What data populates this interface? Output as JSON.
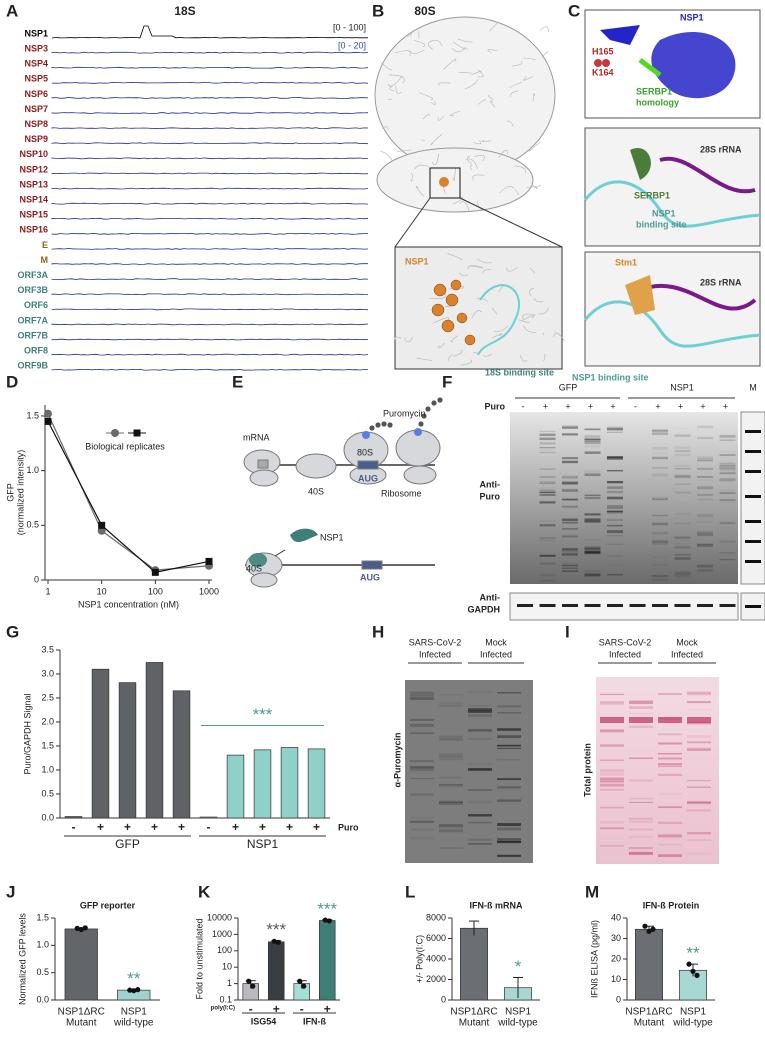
{
  "letters": [
    "A",
    "B",
    "C",
    "D",
    "E",
    "F",
    "G",
    "H",
    "I",
    "J",
    "K",
    "L",
    "M"
  ],
  "panel_a": {
    "title": "18S",
    "ranges": [
      "[0 - 100]",
      "[0 - 20]"
    ],
    "tracks": [
      {
        "name": "NSP1",
        "color": "#000000"
      },
      {
        "name": "NSP3",
        "color": "#8b1a1a"
      },
      {
        "name": "NSP4",
        "color": "#8b1a1a"
      },
      {
        "name": "NSP5",
        "color": "#8b1a1a"
      },
      {
        "name": "NSP6",
        "color": "#8b1a1a"
      },
      {
        "name": "NSP7",
        "color": "#8b1a1a"
      },
      {
        "name": "NSP8",
        "color": "#8b1a1a"
      },
      {
        "name": "NSP9",
        "color": "#8b1a1a"
      },
      {
        "name": "NSP10",
        "color": "#8b1a1a"
      },
      {
        "name": "NSP12",
        "color": "#8b1a1a"
      },
      {
        "name": "NSP13",
        "color": "#8b1a1a"
      },
      {
        "name": "NSP14",
        "color": "#8b1a1a"
      },
      {
        "name": "NSP15",
        "color": "#8b1a1a"
      },
      {
        "name": "NSP16",
        "color": "#8b1a1a"
      },
      {
        "name": "E",
        "color": "#8b6914"
      },
      {
        "name": "M",
        "color": "#8b6914"
      },
      {
        "name": "ORF3A",
        "color": "#3f7f7a"
      },
      {
        "name": "ORF3B",
        "color": "#3f7f7a"
      },
      {
        "name": "ORF6",
        "color": "#3f7f7a"
      },
      {
        "name": "ORF7A",
        "color": "#3f7f7a"
      },
      {
        "name": "ORF7B",
        "color": "#3f7f7a"
      },
      {
        "name": "ORF8",
        "color": "#3f7f7a"
      },
      {
        "name": "ORF9B",
        "color": "#3f7f7a"
      }
    ]
  },
  "panel_b": {
    "title": "80S",
    "inset_label": "NSP1",
    "caption": "18S binding site"
  },
  "panel_c": {
    "top": [
      "NSP1",
      "H165",
      "K164",
      "SERBP1",
      "homology"
    ],
    "middle": [
      "28S rRNA",
      "SERBP1",
      "NSP1",
      "binding site"
    ],
    "bottom": [
      "Stm1",
      "28S rRNA",
      "NSP1 binding site"
    ]
  },
  "panel_e": {
    "labels": [
      "mRNA",
      "40S",
      "80S",
      "AUG",
      "Ribosome",
      "Puromycin",
      "NSP1",
      "40S",
      "AUG"
    ]
  },
  "panel_f": {
    "groups": [
      "GFP",
      "NSP1"
    ],
    "marker": "M",
    "row_label": "Puro",
    "lanes": [
      "-",
      "+",
      "+",
      "+",
      "+",
      "-",
      "+",
      "+",
      "+",
      "+"
    ],
    "blot1": [
      "Anti-",
      "Puro"
    ],
    "blot2": [
      "Anti-",
      "GAPDH"
    ]
  },
  "panel_h": {
    "groups": [
      [
        "SARS-CoV-2",
        "Infected"
      ],
      [
        "Mock",
        "Infected"
      ]
    ],
    "side": "α-Puromycin"
  },
  "panel_i": {
    "groups": [
      [
        "SARS-CoV-2",
        "Infected"
      ],
      [
        "Mock",
        "Infected"
      ]
    ],
    "side": "Total protein"
  },
  "chart_data": [
    {
      "type": "line",
      "xlog": true,
      "x": [
        1,
        10,
        100,
        1000
      ],
      "xlim": [
        1,
        1000
      ],
      "xticks": [
        1,
        10,
        100,
        1000
      ],
      "ylim": [
        0,
        1.6
      ],
      "yticks": [
        0,
        0.5,
        {
          "value": 1.0,
          "label": "1.0"
        },
        1.5
      ],
      "ylabel": [
        "GFP",
        "(normalized intensity)"
      ],
      "xlabel": "NSP1 concentration (nM)",
      "legend_label": "Biological replicates",
      "series": [
        {
          "marker": "circle",
          "color": "#6b6b6b",
          "values": [
            1.52,
            0.45,
            0.09,
            0.13
          ]
        },
        {
          "marker": "square",
          "color": "#111111",
          "values": [
            1.45,
            0.5,
            0.07,
            0.17
          ]
        }
      ]
    },
    {
      "type": "bar",
      "ylim": [
        0,
        3.5
      ],
      "yticks": [
        {
          "value": 0,
          "label": "0.0"
        },
        0.5,
        {
          "value": 1,
          "label": "1.0"
        },
        1.5,
        {
          "value": 2,
          "label": "2.0"
        },
        2.5,
        {
          "value": 3,
          "label": "3.0"
        },
        3.5
      ],
      "ylabel": "Puro/GAPDH Signal",
      "categories": [
        "-",
        "+",
        "+",
        "+",
        "+",
        "-",
        "+",
        "+",
        "+",
        "+"
      ],
      "values": [
        0.03,
        3.1,
        2.82,
        3.24,
        2.65,
        0.02,
        1.31,
        1.42,
        1.47,
        1.44
      ],
      "colors": [
        "#5f6368",
        "#5f6368",
        "#5f6368",
        "#5f6368",
        "#5f6368",
        "#8fd0c9",
        "#8fd0c9",
        "#8fd0c9",
        "#8fd0c9",
        "#8fd0c9"
      ],
      "groups": [
        "GFP",
        "NSP1"
      ],
      "axis_note": "Puro",
      "group_significance": [
        null,
        "***"
      ]
    },
    {
      "type": "bar",
      "title": "GFP reporter",
      "ylim": [
        0,
        1.5
      ],
      "yticks": [
        {
          "value": 0,
          "label": "0.0"
        },
        0.5,
        {
          "value": 1,
          "label": "1.0"
        },
        1.5
      ],
      "ylabel": "Normalized GFP levels",
      "categories": [
        [
          "NSP1ΔRC",
          "Mutant"
        ],
        [
          "NSP1",
          "wild-type"
        ]
      ],
      "values": [
        1.3,
        0.18
      ],
      "colors": [
        "#62666b",
        "#9fd3cf"
      ],
      "points": [
        [
          1.31,
          1.29,
          1.32
        ],
        [
          0.18,
          0.17,
          0.19
        ]
      ],
      "significance": [
        null,
        "**"
      ]
    },
    {
      "type": "bar",
      "ylog": true,
      "ylim": [
        0.1,
        10000
      ],
      "yticks": [
        0.1,
        1,
        10,
        100,
        1000,
        10000
      ],
      "ylabel": "Fold to unstimulated",
      "categories": [
        "-",
        "+",
        "-",
        "+"
      ],
      "axis_note": "poly(I:C)",
      "values": [
        1,
        350,
        1,
        7000
      ],
      "errors": [
        0.5,
        60,
        0.5,
        800
      ],
      "colors": [
        "#b8babd",
        "#3a3d42",
        "#a8dcd7",
        "#3e7f78"
      ],
      "points": [
        [
          1.4,
          0.7
        ],
        [
          380,
          330
        ],
        [
          1.4,
          0.7
        ],
        [
          7500,
          6600
        ]
      ],
      "groups": [
        "ISG54",
        "IFN-ß"
      ],
      "significance": [
        null,
        "***",
        null,
        "***"
      ]
    },
    {
      "type": "bar",
      "title": "IFN-ß mRNA",
      "ylim": [
        0,
        8000
      ],
      "yticks": [
        0,
        2000,
        4000,
        6000,
        8000
      ],
      "ylabel": "+/- Poly(I:C)",
      "categories": [
        [
          "NSP1ΔRC",
          "Mutant"
        ],
        [
          "NSP1",
          "wild-type"
        ]
      ],
      "values": [
        7000,
        1200
      ],
      "errors": [
        700,
        1000
      ],
      "colors": [
        "#6b6f74",
        "#a7d8d3"
      ],
      "significance": [
        null,
        "*"
      ]
    },
    {
      "type": "bar",
      "title": "IFN-ß Protein",
      "ylim": [
        0,
        40
      ],
      "yticks": [
        0,
        10,
        20,
        30,
        40
      ],
      "ylabel": "IFNß ELISA (pg/ml)",
      "categories": [
        [
          "NSP1ΔRC",
          "Mutant"
        ],
        [
          "NSP1",
          "wild-type"
        ]
      ],
      "values": [
        34.5,
        14.5
      ],
      "errors": [
        1.5,
        3
      ],
      "colors": [
        "#6b6f74",
        "#a7d8d3"
      ],
      "points": [
        [
          36,
          33.5,
          34.5
        ],
        [
          17.5,
          14,
          12
        ]
      ],
      "significance": [
        null,
        "**"
      ]
    }
  ]
}
